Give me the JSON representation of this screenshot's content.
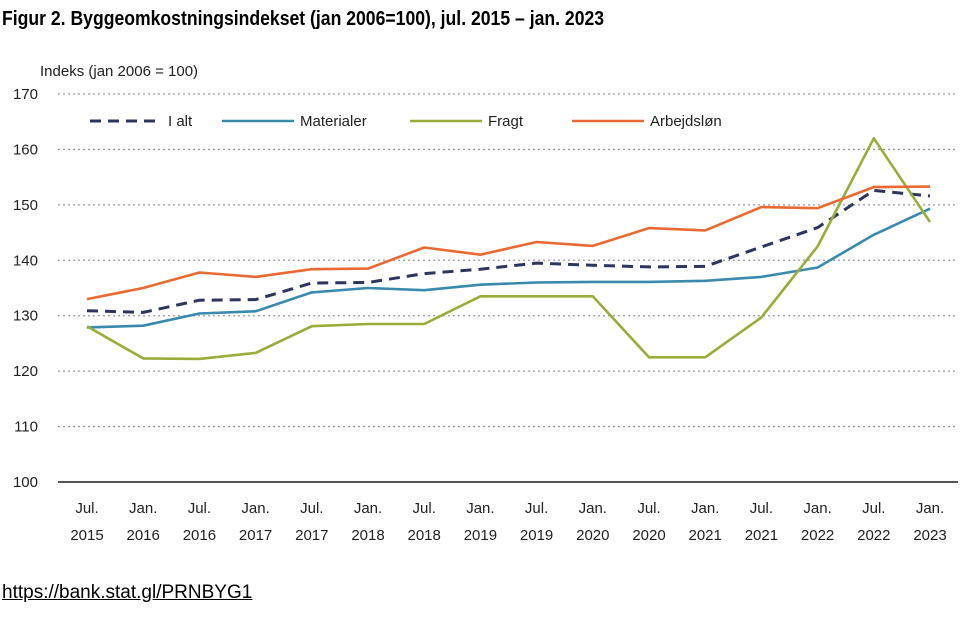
{
  "title": "Figur 2. Byggeomkostningsindekset (jan 2006=100), jul. 2015 – jan. 2023",
  "source_link": "https://bank.stat.gl/PRNBYG1",
  "chart_data": {
    "type": "line",
    "ylabel": "Indeks (jan 2006 = 100)",
    "ylim": [
      100,
      170
    ],
    "yticks": [
      100,
      110,
      120,
      130,
      140,
      150,
      160,
      170
    ],
    "grid": "dotted horizontal",
    "legend_position": "top",
    "categories": [
      [
        "Jul.",
        "2015"
      ],
      [
        "Jan.",
        "2016"
      ],
      [
        "Jul.",
        "2016"
      ],
      [
        "Jan.",
        "2017"
      ],
      [
        "Jul.",
        "2017"
      ],
      [
        "Jan.",
        "2018"
      ],
      [
        "Jul.",
        "2018"
      ],
      [
        "Jan.",
        "2019"
      ],
      [
        "Jul.",
        "2019"
      ],
      [
        "Jan.",
        "2020"
      ],
      [
        "Jul.",
        "2020"
      ],
      [
        "Jan.",
        "2021"
      ],
      [
        "Jul.",
        "2021"
      ],
      [
        "Jan.",
        "2022"
      ],
      [
        "Jul.",
        "2022"
      ],
      [
        "Jan.",
        "2023"
      ]
    ],
    "series": [
      {
        "name": "I alt",
        "color": "#2e3660",
        "dashed": true,
        "values": [
          130.9,
          130.6,
          132.8,
          132.9,
          135.9,
          136.0,
          137.6,
          138.4,
          139.5,
          139.1,
          138.8,
          138.9,
          142.4,
          145.9,
          152.6,
          151.6
        ]
      },
      {
        "name": "Materialer",
        "color": "#3a8aad",
        "dashed": false,
        "values": [
          127.9,
          128.2,
          130.4,
          130.8,
          134.2,
          135.0,
          134.6,
          135.6,
          136.0,
          136.1,
          136.1,
          136.3,
          137.0,
          138.7,
          144.6,
          149.3
        ]
      },
      {
        "name": "Fragt",
        "color": "#9aac3a",
        "dashed": false,
        "values": [
          128.1,
          122.3,
          122.2,
          123.3,
          128.1,
          128.5,
          128.5,
          133.5,
          133.5,
          133.5,
          122.5,
          122.5,
          129.7,
          142.5,
          162.0,
          146.9
        ]
      },
      {
        "name": "Arbejdsløn",
        "color": "#ea6a33",
        "dashed": false,
        "values": [
          133.0,
          135.0,
          137.8,
          137.0,
          138.4,
          138.5,
          142.3,
          141.0,
          143.3,
          142.6,
          145.8,
          145.4,
          149.6,
          149.4,
          153.2,
          153.3
        ]
      }
    ]
  }
}
